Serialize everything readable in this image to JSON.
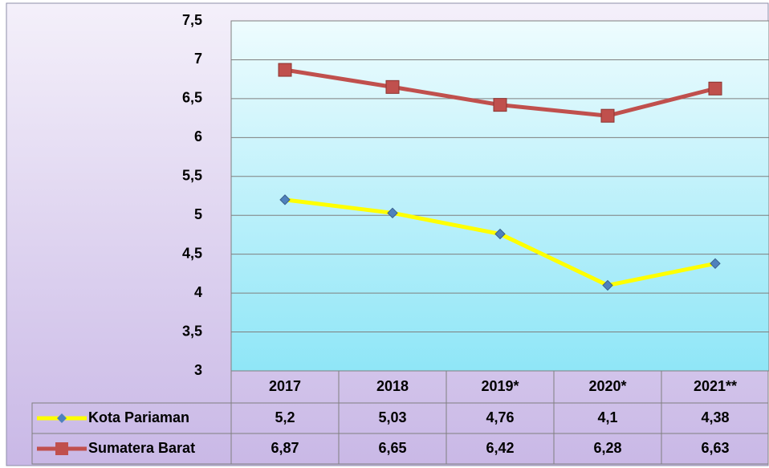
{
  "chart_data": {
    "type": "line",
    "categories": [
      "2017",
      "2018",
      "2019*",
      "2020*",
      "2021**"
    ],
    "series": [
      {
        "name": "Kota Pariaman",
        "color": "#ffff00",
        "marker_color": "#4f81bd",
        "marker": "diamond",
        "values": [
          5.2,
          5.03,
          4.76,
          4.1,
          4.38
        ],
        "value_labels": [
          "5,2",
          "5,03",
          "4,76",
          "4,1",
          "4,38"
        ]
      },
      {
        "name": "Sumatera Barat",
        "color": "#c0504d",
        "marker_color": "#c0504d",
        "marker": "square",
        "values": [
          6.87,
          6.65,
          6.42,
          6.28,
          6.63
        ],
        "value_labels": [
          "6,87",
          "6,65",
          "6,42",
          "6,28",
          "6,63"
        ]
      }
    ],
    "ylim": [
      3,
      7.5
    ],
    "yticks": [
      3,
      {
        "value": 3.5,
        "label": "3,5"
      },
      4,
      {
        "value": 4.5,
        "label": "4,5"
      },
      5,
      {
        "value": 5.5,
        "label": "5,5"
      },
      6,
      {
        "value": 6.5,
        "label": "6,5"
      },
      7,
      {
        "value": 7.5,
        "label": "7,5"
      }
    ],
    "grid": true
  }
}
